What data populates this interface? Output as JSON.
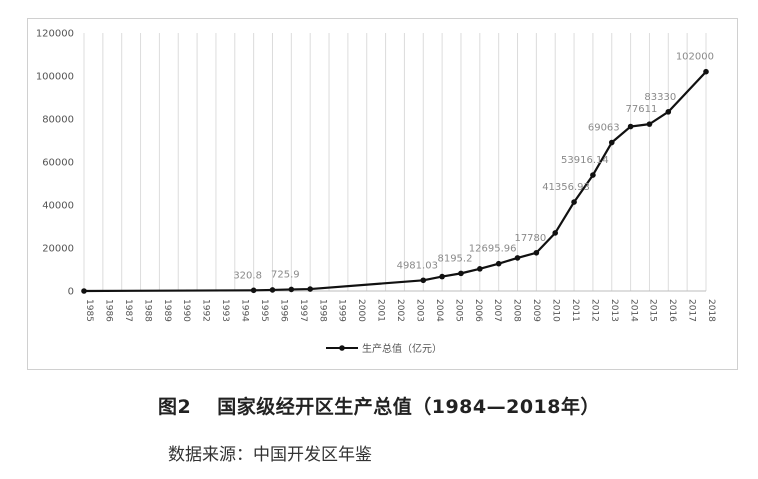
{
  "chart_data": {
    "type": "line",
    "title": "",
    "xlabel": "",
    "ylabel": "",
    "ylim": [
      0,
      120000
    ],
    "yticks": [
      "0",
      "20000",
      "40000",
      "60000",
      "80000",
      "100000",
      "120000"
    ],
    "categories": [
      "1985",
      "1986",
      "1987",
      "1988",
      "1989",
      "1990",
      "1991",
      "1992",
      "1993",
      "1994",
      "1995",
      "1996",
      "1997",
      "1998",
      "1999",
      "2000",
      "2001",
      "2002",
      "2003",
      "2004",
      "2005",
      "2006",
      "2007",
      "2008",
      "2009",
      "2010",
      "2011",
      "2012",
      "2013",
      "2014",
      "2015",
      "2016",
      "2017",
      "2018"
    ],
    "xtick_labels": [
      "1985",
      "1986",
      "1987",
      "1988",
      "1989",
      "1990",
      "1992",
      "1993",
      "1994",
      "1995",
      "1996",
      "1997",
      "1998",
      "1999",
      "2000",
      "2001",
      "2002",
      "2003",
      "2004",
      "2005",
      "2006",
      "2007",
      "2008",
      "2009",
      "2010",
      "2011",
      "2012",
      "2013",
      "2014",
      "2015",
      "2016",
      "2017",
      "2018"
    ],
    "grid": "vertical",
    "legend_position": "bottom-center",
    "series": [
      {
        "name": "生产总值（亿元）",
        "color": "#111111",
        "points": [
          {
            "x": "1985",
            "y": 0
          },
          {
            "x": "1994",
            "y": 320.8,
            "label": "320.8"
          },
          {
            "x": "1995",
            "y": 500
          },
          {
            "x": "1996",
            "y": 725.9,
            "label": "725.9"
          },
          {
            "x": "1997",
            "y": 900
          },
          {
            "x": "2003",
            "y": 4981.03,
            "label": "4981.03"
          },
          {
            "x": "2004",
            "y": 6700
          },
          {
            "x": "2005",
            "y": 8195.2,
            "label": "8195.2"
          },
          {
            "x": "2006",
            "y": 10300
          },
          {
            "x": "2007",
            "y": 12695.96,
            "label": "12695.96"
          },
          {
            "x": "2008",
            "y": 15400
          },
          {
            "x": "2009",
            "y": 17780,
            "label": "17780"
          },
          {
            "x": "2010",
            "y": 27000
          },
          {
            "x": "2011",
            "y": 41356.93,
            "label": "41356.93"
          },
          {
            "x": "2012",
            "y": 53916.14,
            "label": "53916.14"
          },
          {
            "x": "2013",
            "y": 69063,
            "label": "69063"
          },
          {
            "x": "2014",
            "y": 76500
          },
          {
            "x": "2015",
            "y": 77611,
            "label": "77611"
          },
          {
            "x": "2016",
            "y": 83330,
            "label": "83330"
          },
          {
            "x": "2018",
            "y": 102000,
            "label": "102000"
          }
        ]
      }
    ]
  },
  "caption": {
    "figure_number": "图2",
    "title": "国家级经开区生产总值（1984—2018年）"
  },
  "source_note": "数据来源：中国开发区年鉴"
}
